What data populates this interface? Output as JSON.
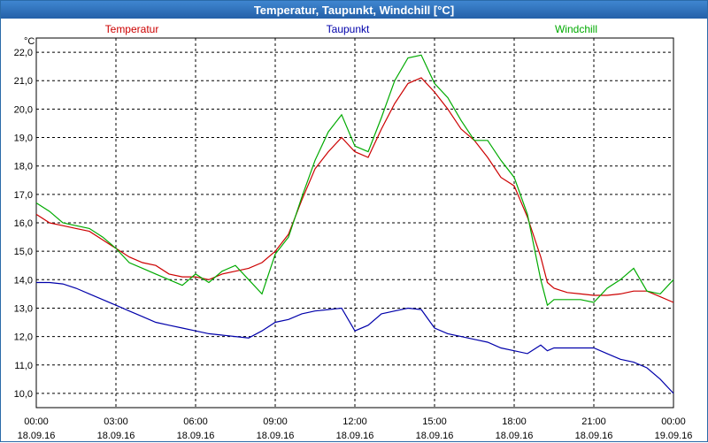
{
  "window": {
    "title": "Temperatur, Taupunkt, Windchill [°C]"
  },
  "colors": {
    "temperatur": "#cc0000",
    "taupunkt": "#0000aa",
    "windchill": "#00aa00",
    "grid": "#000000"
  },
  "chart_data": {
    "type": "line",
    "title": "Temperatur, Taupunkt, Windchill [°C]",
    "ylabel": "°C",
    "xlabel": "",
    "ylim": [
      9.5,
      22.5
    ],
    "xlim_hours": [
      0,
      24
    ],
    "y_ticks": [
      "10,0",
      "11,0",
      "12,0",
      "13,0",
      "14,0",
      "15,0",
      "16,0",
      "17,0",
      "18,0",
      "19,0",
      "20,0",
      "21,0",
      "22,0"
    ],
    "x_ticks": [
      {
        "time": "00:00",
        "date": "18.09.16"
      },
      {
        "time": "03:00",
        "date": "18.09.16"
      },
      {
        "time": "06:00",
        "date": "18.09.16"
      },
      {
        "time": "09:00",
        "date": "18.09.16"
      },
      {
        "time": "12:00",
        "date": "18.09.16"
      },
      {
        "time": "15:00",
        "date": "18.09.16"
      },
      {
        "time": "18:00",
        "date": "18.09.16"
      },
      {
        "time": "21:00",
        "date": "18.09.16"
      },
      {
        "time": "00:00",
        "date": "19.09.16"
      }
    ],
    "grid": true,
    "legend_placement": "top",
    "series": [
      {
        "name": "Temperatur",
        "x": [
          0,
          0.5,
          1,
          1.5,
          2,
          2.5,
          3,
          3.5,
          4,
          4.5,
          5,
          5.5,
          6,
          6.5,
          7,
          7.5,
          8,
          8.5,
          9,
          9.5,
          10,
          10.5,
          11,
          11.5,
          12,
          12.5,
          13,
          13.5,
          14,
          14.5,
          15,
          15.5,
          16,
          16.5,
          17,
          17.5,
          18,
          18.5,
          19,
          19.25,
          19.5,
          20,
          20.5,
          21,
          21.5,
          22,
          22.5,
          23,
          23.5,
          24
        ],
        "values": [
          16.3,
          16.0,
          15.9,
          15.8,
          15.7,
          15.4,
          15.1,
          14.8,
          14.6,
          14.5,
          14.2,
          14.1,
          14.1,
          14.0,
          14.2,
          14.3,
          14.4,
          14.6,
          15.0,
          15.6,
          16.8,
          17.9,
          18.5,
          19.0,
          18.5,
          18.3,
          19.3,
          20.2,
          20.9,
          21.1,
          20.6,
          20.0,
          19.3,
          18.9,
          18.3,
          17.6,
          17.3,
          16.2,
          14.8,
          13.9,
          13.7,
          13.55,
          13.5,
          13.45,
          13.45,
          13.5,
          13.6,
          13.6,
          13.4,
          13.2
        ]
      },
      {
        "name": "Taupunkt",
        "x": [
          0,
          0.5,
          1,
          1.5,
          2,
          2.5,
          3,
          3.5,
          4,
          4.5,
          5,
          5.5,
          6,
          6.5,
          7,
          7.5,
          8,
          8.5,
          9,
          9.5,
          10,
          10.5,
          11,
          11.5,
          12,
          12.5,
          13,
          13.5,
          14,
          14.5,
          15,
          15.5,
          16,
          16.5,
          17,
          17.5,
          18,
          18.5,
          19,
          19.25,
          19.5,
          20,
          20.5,
          21,
          21.5,
          22,
          22.5,
          23,
          23.5,
          24
        ],
        "values": [
          13.9,
          13.9,
          13.85,
          13.7,
          13.5,
          13.3,
          13.1,
          12.9,
          12.7,
          12.5,
          12.4,
          12.3,
          12.2,
          12.1,
          12.05,
          12.0,
          11.95,
          12.2,
          12.5,
          12.6,
          12.8,
          12.9,
          12.95,
          13.0,
          12.2,
          12.4,
          12.8,
          12.9,
          13.0,
          12.95,
          12.3,
          12.1,
          12.0,
          11.9,
          11.8,
          11.6,
          11.5,
          11.4,
          11.7,
          11.5,
          11.6,
          11.6,
          11.6,
          11.6,
          11.4,
          11.2,
          11.1,
          10.9,
          10.5,
          10.0
        ]
      },
      {
        "name": "Windchill",
        "x": [
          0,
          0.5,
          1,
          1.5,
          2,
          2.5,
          3,
          3.5,
          4,
          4.5,
          5,
          5.5,
          6,
          6.5,
          7,
          7.5,
          8,
          8.5,
          9,
          9.5,
          10,
          10.5,
          11,
          11.5,
          12,
          12.5,
          13,
          13.5,
          14,
          14.5,
          15,
          15.5,
          16,
          16.5,
          17,
          17.5,
          18,
          18.5,
          19,
          19.25,
          19.5,
          20,
          20.5,
          21,
          21.5,
          22,
          22.5,
          23,
          23.5,
          24
        ],
        "values": [
          16.7,
          16.4,
          16.0,
          15.9,
          15.8,
          15.5,
          15.1,
          14.6,
          14.4,
          14.2,
          14.0,
          13.8,
          14.2,
          13.9,
          14.3,
          14.5,
          14.0,
          13.5,
          14.9,
          15.5,
          16.9,
          18.2,
          19.2,
          19.8,
          18.7,
          18.5,
          19.7,
          21.0,
          21.8,
          21.9,
          20.9,
          20.4,
          19.6,
          18.9,
          18.9,
          18.2,
          17.6,
          16.3,
          14.0,
          13.1,
          13.3,
          13.3,
          13.3,
          13.2,
          13.7,
          14.0,
          14.4,
          13.6,
          13.5,
          14.0
        ]
      }
    ]
  }
}
